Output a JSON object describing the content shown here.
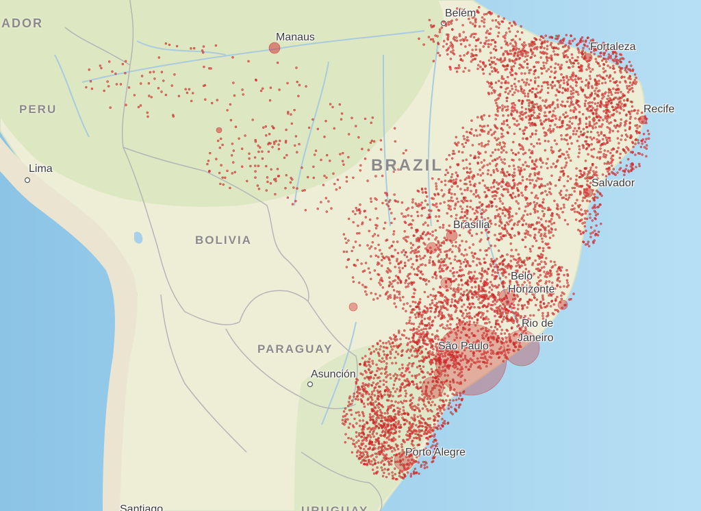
{
  "map": {
    "countries": {
      "ecuador_partial": "ADOR",
      "peru": "PERU",
      "bolivia": "BOLIVIA",
      "brazil": "BRAZIL",
      "paraguay": "PARAGUAY",
      "uruguay_partial": "URUGUAY",
      "chile_city_partial": "Santiago"
    },
    "cities": {
      "belem": "Belém",
      "manaus": "Manaus",
      "fortaleza": "Fortaleza",
      "recife": "Recife",
      "lima": "Lima",
      "salvador": "Salvador",
      "brasilia": "Brasília",
      "belo_horizonte_1": "Belo",
      "belo_horizonte_2": "Horizonte",
      "rio_1": "Rio de",
      "rio_2": "Janeiro",
      "sao_paulo": "São Paulo",
      "asuncion": "Asunción",
      "porto_alegre": "Porto Alegre"
    },
    "overlay": {
      "symbol": "proportional-circle",
      "color": "#cc2a2a"
    },
    "colors": {
      "ocean": "#a9d3ee",
      "land_forest": "#dfe8c4",
      "land_dry": "#f3efd7",
      "andes": "#e9e2cf",
      "river": "#9dc6df",
      "border": "#a9a9a9"
    }
  }
}
